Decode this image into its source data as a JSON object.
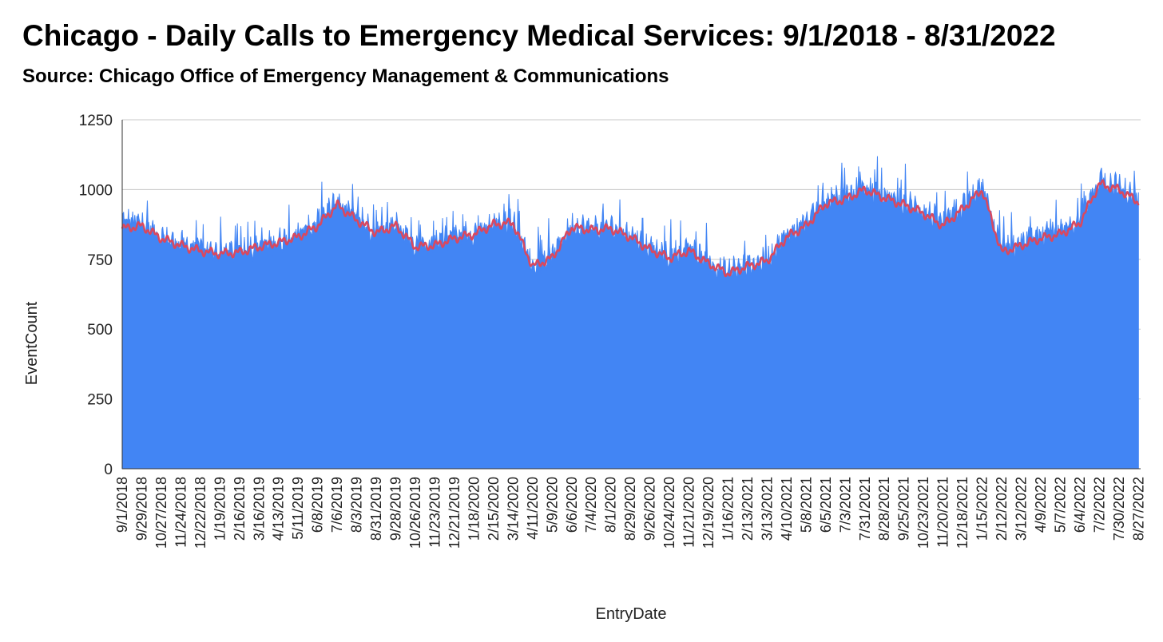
{
  "chart_data": {
    "type": "area",
    "title": "Chicago - Daily Calls to Emergency Medical Services: 9/1/2018 - 8/31/2022",
    "subtitle": "Source: Chicago Office of Emergency Management & Communications",
    "xlabel": "EntryDate",
    "ylabel": "EventCount",
    "ylim": [
      0,
      1250
    ],
    "yticks": [
      0,
      250,
      500,
      750,
      1000,
      1250
    ],
    "grid": true,
    "legend": "none",
    "x_range": [
      "9/1/2018",
      "8/31/2022"
    ],
    "x_tick_labels": [
      "9/1/2018",
      "9/29/2018",
      "10/27/2018",
      "11/24/2018",
      "12/22/2018",
      "1/19/2019",
      "2/16/2019",
      "3/16/2019",
      "4/13/2019",
      "5/11/2019",
      "6/8/2019",
      "7/6/2019",
      "8/3/2019",
      "8/31/2019",
      "9/28/2019",
      "10/26/2019",
      "11/23/2019",
      "12/21/2019",
      "1/18/2020",
      "2/15/2020",
      "3/14/2020",
      "4/11/2020",
      "5/9/2020",
      "6/6/2020",
      "7/4/2020",
      "8/1/2020",
      "8/29/2020",
      "9/26/2020",
      "10/24/2020",
      "11/21/2020",
      "12/19/2020",
      "1/16/2021",
      "2/13/2021",
      "3/13/2021",
      "4/10/2021",
      "5/8/2021",
      "6/5/2021",
      "7/3/2021",
      "7/31/2021",
      "8/28/2021",
      "9/25/2021",
      "10/23/2021",
      "11/20/2021",
      "12/18/2021",
      "1/15/2022",
      "2/12/2022",
      "3/12/2022",
      "4/9/2022",
      "5/7/2022",
      "6/4/2022",
      "7/2/2022",
      "7/30/2022",
      "8/27/2022"
    ],
    "series": [
      {
        "type": "area",
        "color": "#4285f4",
        "approx_values_at_ticks": [
          890,
          880,
          830,
          805,
          790,
          775,
          780,
          800,
          815,
          840,
          880,
          960,
          895,
          850,
          880,
          800,
          805,
          835,
          845,
          880,
          885,
          730,
          760,
          875,
          860,
          865,
          840,
          790,
          760,
          790,
          740,
          705,
          730,
          750,
          840,
          880,
          960,
          975,
          1010,
          975,
          955,
          925,
          880,
          940,
          1010,
          785,
          805,
          830,
          850,
          890,
          1035,
          1010,
          960
        ]
      },
      {
        "type": "line",
        "color": "#d9485f",
        "approx_values_at_ticks": [
          860,
          870,
          825,
          800,
          780,
          770,
          775,
          795,
          810,
          830,
          870,
          945,
          890,
          845,
          870,
          795,
          800,
          825,
          840,
          875,
          880,
          725,
          755,
          865,
          855,
          860,
          830,
          785,
          755,
          780,
          735,
          700,
          725,
          745,
          830,
          870,
          950,
          965,
          1000,
          970,
          945,
          915,
          870,
          930,
          1000,
          775,
          800,
          825,
          840,
          880,
          1020,
          1000,
          955
        ]
      }
    ]
  }
}
